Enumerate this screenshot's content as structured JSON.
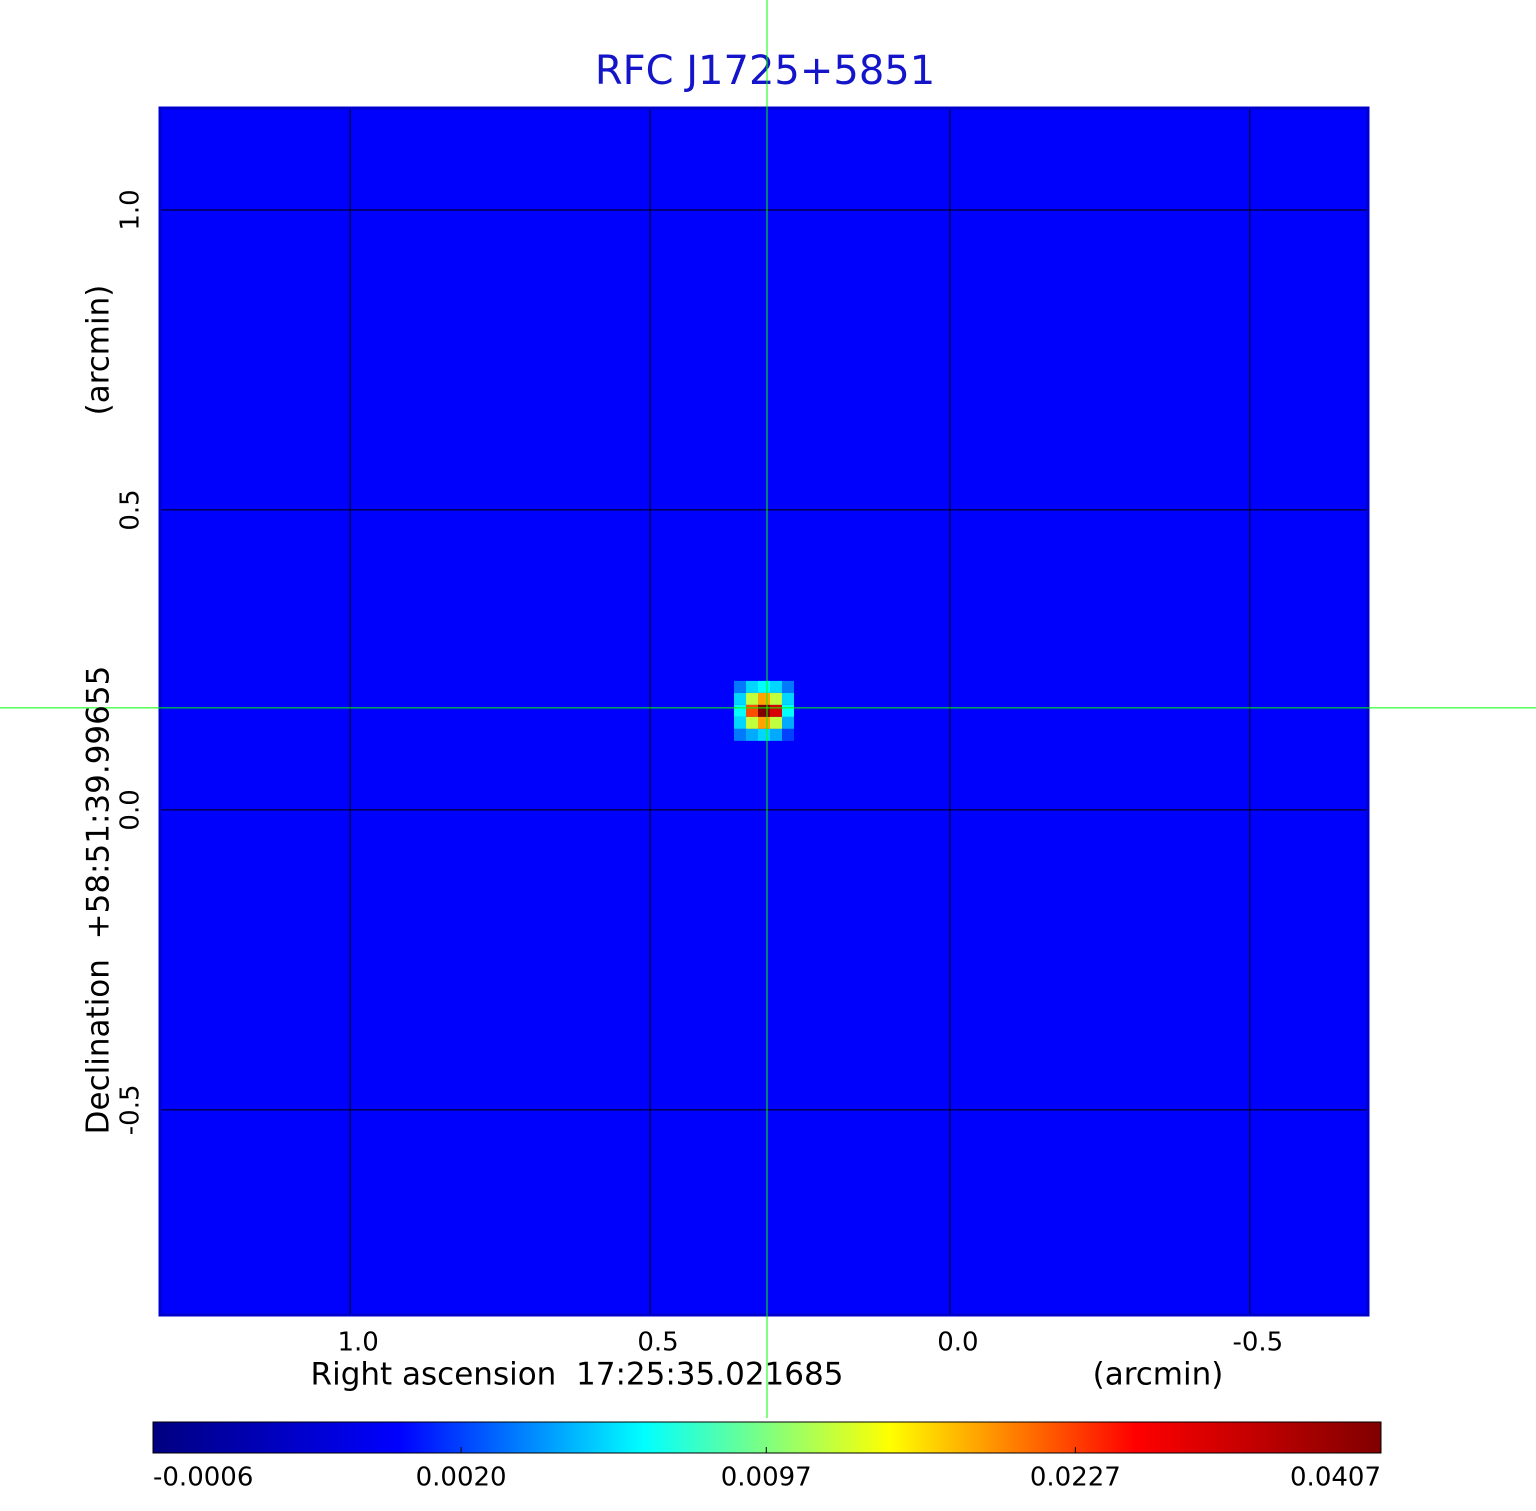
{
  "chart_data": {
    "type": "heatmap",
    "title": "RFC J1725+5851",
    "x_label": "Right ascension  17:25:35.021685",
    "x_unit": "(arcmin)",
    "y_label": "Declination  +58:51:39.99655",
    "y_unit": "(arcmin)",
    "xlim": [
      1.317,
      -0.697
    ],
    "ylim": [
      -0.842,
      1.17
    ],
    "xticks": [
      {
        "value": 1,
        "label": "1.0"
      },
      0.5,
      {
        "value": 0,
        "label": "0.0"
      },
      -0.5
    ],
    "yticks": [
      {
        "value": 1,
        "label": "1.0"
      },
      0.5,
      {
        "value": 0,
        "label": "0.0"
      },
      -0.5
    ],
    "grid": true,
    "background": 0.001,
    "z_x": [
      0.35,
      0.33,
      0.31,
      0.29,
      0.27
    ],
    "z_y": [
      0.205,
      0.185,
      0.165,
      0.145,
      0.125
    ],
    "z": [
      [
        0.003,
        0.005,
        0.006,
        0.005,
        0.003
      ],
      [
        0.005,
        0.012,
        0.018,
        0.012,
        0.005
      ],
      [
        0.006,
        0.022,
        0.0407,
        0.03,
        0.006
      ],
      [
        0.005,
        0.012,
        0.018,
        0.012,
        0.004
      ],
      [
        0.003,
        0.004,
        0.005,
        0.004,
        0.002
      ]
    ],
    "crosshair": [
      0.305,
      0.17
    ],
    "crosshair_color": "#00ff00",
    "zlim": [
      -0.0006,
      0.0407
    ],
    "zticks": [
      -0.0006,
      {
        "value": 0.002,
        "label": "0.0020"
      },
      0.0097,
      0.0227,
      0.0407
    ],
    "color_scale": "sqrt",
    "colormap": [
      "#000080",
      "#0000ff",
      "#00ffff",
      "#ffff00",
      "#ff0000",
      "#800000"
    ],
    "title_color": "#1414c8",
    "frame_color": "#0000cc"
  }
}
